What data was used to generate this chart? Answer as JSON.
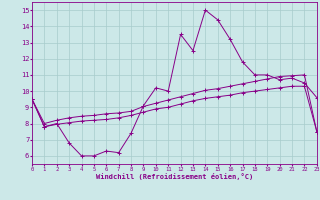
{
  "xlabel": "Windchill (Refroidissement éolien,°C)",
  "background_color": "#cce8e8",
  "grid_color": "#a8cccc",
  "line_color": "#880088",
  "xlim": [
    0,
    23
  ],
  "ylim": [
    5.5,
    15.5
  ],
  "xticks": [
    0,
    1,
    2,
    3,
    4,
    5,
    6,
    7,
    8,
    9,
    10,
    11,
    12,
    13,
    14,
    15,
    16,
    17,
    18,
    19,
    20,
    21,
    22,
    23
  ],
  "yticks": [
    6,
    7,
    8,
    9,
    10,
    11,
    12,
    13,
    14,
    15
  ],
  "line1_x": [
    0,
    1,
    2,
    3,
    4,
    5,
    6,
    7,
    8,
    9,
    10,
    11,
    12,
    13,
    14,
    15,
    16,
    17,
    18,
    19,
    20,
    21,
    22,
    23
  ],
  "line1_y": [
    9.5,
    7.8,
    8.0,
    6.8,
    6.0,
    6.0,
    6.3,
    6.2,
    7.4,
    9.1,
    10.2,
    10.0,
    13.5,
    12.5,
    15.0,
    14.4,
    13.2,
    11.8,
    11.0,
    11.0,
    10.7,
    10.8,
    10.5,
    9.6
  ],
  "line2_x": [
    0,
    1,
    2,
    3,
    4,
    5,
    6,
    7,
    8,
    9,
    10,
    11,
    12,
    13,
    14,
    15,
    16,
    17,
    18,
    19,
    20,
    21,
    22,
    23
  ],
  "line2_y": [
    9.5,
    8.0,
    8.2,
    8.35,
    8.45,
    8.5,
    8.6,
    8.65,
    8.75,
    9.05,
    9.25,
    9.45,
    9.65,
    9.85,
    10.05,
    10.15,
    10.3,
    10.45,
    10.6,
    10.75,
    10.9,
    10.95,
    11.0,
    7.5
  ],
  "line3_x": [
    0,
    1,
    2,
    3,
    4,
    5,
    6,
    7,
    8,
    9,
    10,
    11,
    12,
    13,
    14,
    15,
    16,
    17,
    18,
    19,
    20,
    21,
    22,
    23
  ],
  "line3_y": [
    9.5,
    7.8,
    7.95,
    8.05,
    8.15,
    8.2,
    8.25,
    8.35,
    8.5,
    8.7,
    8.9,
    9.0,
    9.2,
    9.4,
    9.55,
    9.65,
    9.75,
    9.9,
    10.0,
    10.1,
    10.2,
    10.3,
    10.3,
    7.5
  ]
}
